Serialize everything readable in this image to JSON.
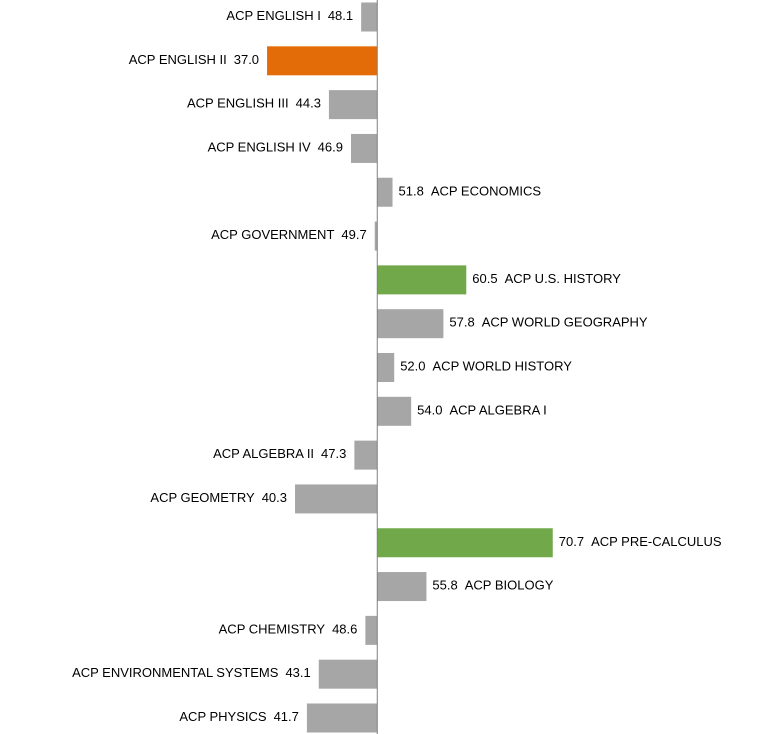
{
  "chart_data": {
    "type": "bar",
    "orientation": "horizontal",
    "categories": [
      "ACP ENGLISH I",
      "ACP ENGLISH II",
      "ACP ENGLISH III",
      "ACP ENGLISH IV",
      "ACP ECONOMICS",
      "ACP GOVERNMENT",
      "ACP U.S. HISTORY",
      "ACP WORLD GEOGRAPHY",
      "ACP WORLD HISTORY",
      "ACP ALGEBRA I",
      "ACP ALGEBRA II",
      "ACP GEOMETRY",
      "ACP PRE-CALCULUS",
      "ACP BIOLOGY",
      "ACP CHEMISTRY",
      "ACP ENVIRONMENTAL SYSTEMS",
      "ACP PHYSICS"
    ],
    "values": [
      48.1,
      37,
      44.3,
      46.9,
      51.8,
      49.7,
      60.5,
      57.8,
      52,
      54,
      47.3,
      40.3,
      70.7,
      55.8,
      48.6,
      43.1,
      41.7
    ],
    "value_labels": [
      "48.1",
      "37.0",
      "44.3",
      "46.9",
      "51.8",
      "49.7",
      "60.5",
      "57.8",
      "52.0",
      "54.0",
      "47.3",
      "40.3",
      "70.7",
      "55.8",
      "48.6",
      "43.1",
      "41.7"
    ],
    "colors": [
      "#a6a6a6",
      "#e36c09",
      "#a6a6a6",
      "#a6a6a6",
      "#a6a6a6",
      "#a6a6a6",
      "#70a84a",
      "#a6a6a6",
      "#a6a6a6",
      "#a6a6a6",
      "#a6a6a6",
      "#a6a6a6",
      "#70a84a",
      "#a6a6a6",
      "#a6a6a6",
      "#a6a6a6",
      "#a6a6a6"
    ],
    "xlim": [
      5.5,
      95.5
    ],
    "baseline": 50
  }
}
